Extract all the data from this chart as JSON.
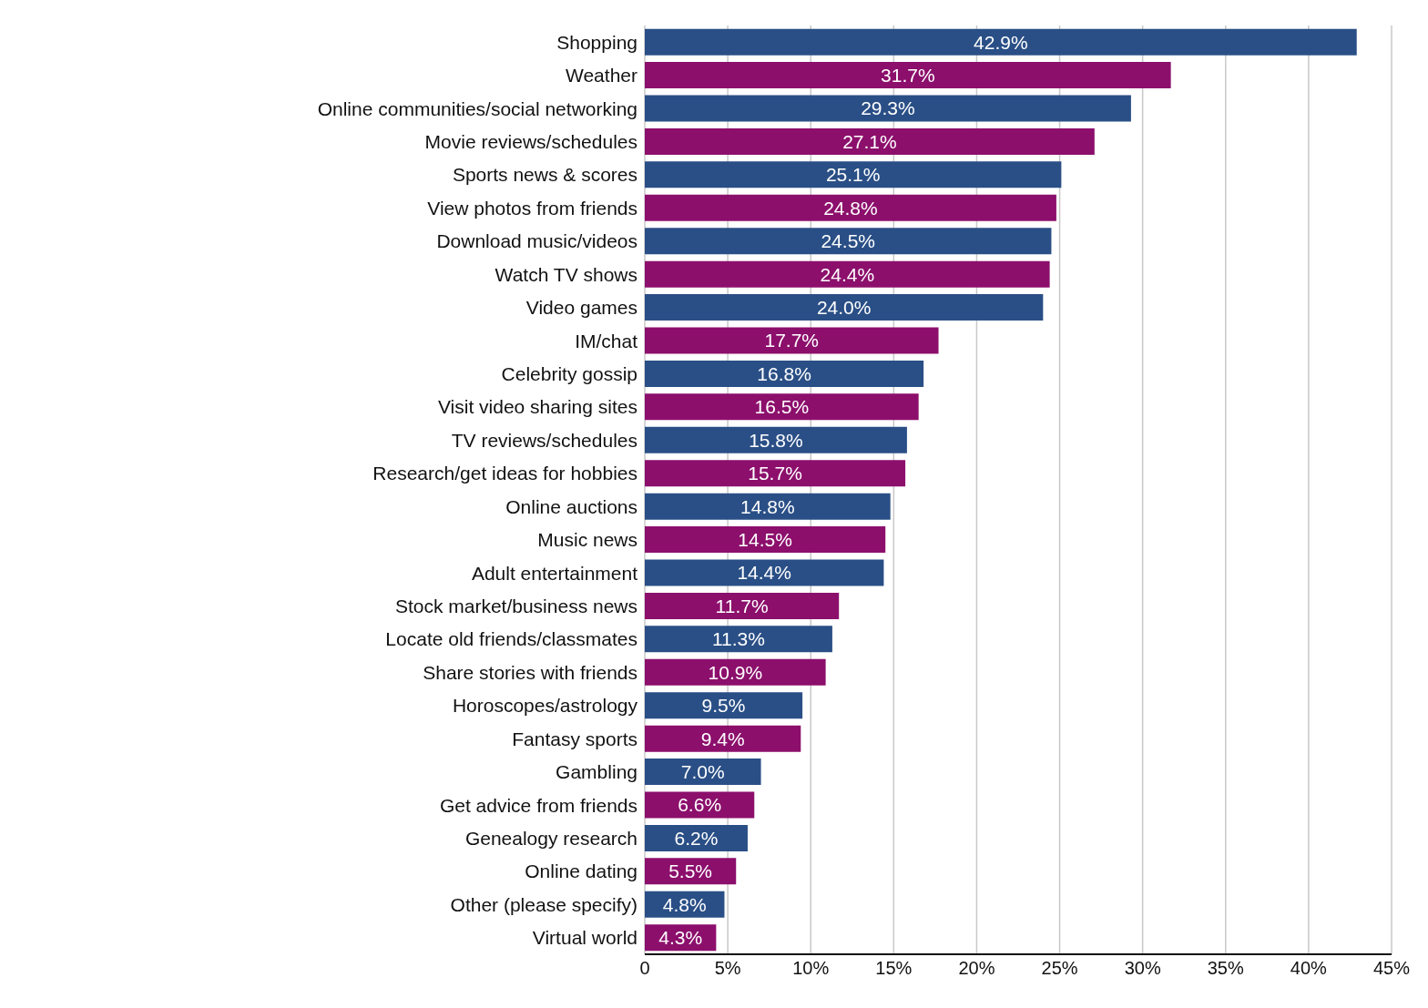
{
  "chart_data": {
    "type": "bar",
    "orientation": "horizontal",
    "categories": [
      "Shopping",
      "Weather",
      "Online communities/social networking",
      "Movie reviews/schedules",
      "Sports news & scores",
      "View photos from friends",
      "Download music/videos",
      "Watch TV shows",
      "Video games",
      "IM/chat",
      "Celebrity gossip",
      "Visit video sharing sites",
      "TV reviews/schedules",
      "Research/get ideas for hobbies",
      "Online auctions",
      "Music news",
      "Adult entertainment",
      "Stock market/business news",
      "Locate old friends/classmates",
      "Share stories with friends",
      "Horoscopes/astrology",
      "Fantasy sports",
      "Gambling",
      "Get advice from friends",
      "Genealogy research",
      "Online dating",
      "Other (please specify)",
      "Virtual world"
    ],
    "values": [
      42.9,
      31.7,
      29.3,
      27.1,
      25.1,
      24.8,
      24.5,
      24.4,
      24.0,
      17.7,
      16.8,
      16.5,
      15.8,
      15.7,
      14.8,
      14.5,
      14.4,
      11.7,
      11.3,
      10.9,
      9.5,
      9.4,
      7.0,
      6.6,
      6.2,
      5.5,
      4.8,
      4.3
    ],
    "value_labels": [
      "42.9%",
      "31.7%",
      "29.3%",
      "27.1%",
      "25.1%",
      "24.8%",
      "24.5%",
      "24.4%",
      "24.0%",
      "17.7%",
      "16.8%",
      "16.5%",
      "15.8%",
      "15.7%",
      "14.8%",
      "14.5%",
      "14.4%",
      "11.7%",
      "11.3%",
      "10.9%",
      "9.5%",
      "9.4%",
      "7.0%",
      "6.6%",
      "6.2%",
      "5.5%",
      "4.8%",
      "4.3%"
    ],
    "colors": [
      "#2a4f86",
      "#8c0f6c",
      "#2a4f86",
      "#8c0f6c",
      "#2a4f86",
      "#8c0f6c",
      "#2a4f86",
      "#8c0f6c",
      "#2a4f86",
      "#8c0f6c",
      "#2a4f86",
      "#8c0f6c",
      "#2a4f86",
      "#8c0f6c",
      "#2a4f86",
      "#8c0f6c",
      "#2a4f86",
      "#8c0f6c",
      "#2a4f86",
      "#8c0f6c",
      "#2a4f86",
      "#8c0f6c",
      "#2a4f86",
      "#8c0f6c",
      "#2a4f86",
      "#8c0f6c",
      "#2a4f86",
      "#8c0f6c"
    ],
    "xlim": [
      0,
      45
    ],
    "xticks": [
      {
        "value": 0,
        "label": "0"
      },
      {
        "value": 5,
        "label": "5%"
      },
      {
        "value": 10,
        "label": "10%"
      },
      {
        "value": 15,
        "label": "15%"
      },
      {
        "value": 20,
        "label": "20%"
      },
      {
        "value": 25,
        "label": "25%"
      },
      {
        "value": 30,
        "label": "30%"
      },
      {
        "value": 35,
        "label": "35%"
      },
      {
        "value": 40,
        "label": "40%"
      },
      {
        "value": 45,
        "label": "45%"
      }
    ],
    "grid": "x"
  }
}
